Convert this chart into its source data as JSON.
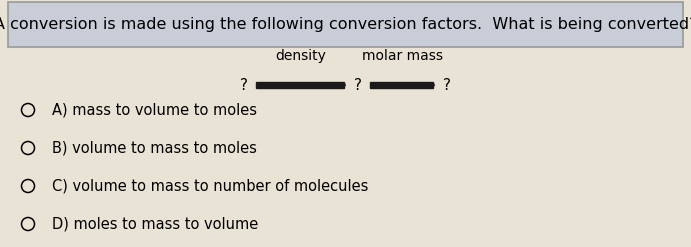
{
  "title": "A conversion is made using the following conversion factors.  What is being converted?",
  "title_fontsize": 11.5,
  "title_bg_color": "#c8cdd8",
  "bg_color": "#e8e3d5",
  "arrow1_label": "density",
  "arrow2_label": "molar mass",
  "options": [
    "A) mass to volume to moles",
    "B) volume to mass to moles",
    "C) volume to mass to number of molecules",
    "D) moles to mass to volume"
  ],
  "option_fontsize": 10.5,
  "arrow_color": "#1a1a1a",
  "label_fontsize": 10,
  "q_fontsize": 11,
  "fig_width": 6.91,
  "fig_height": 2.47,
  "dpi": 100
}
